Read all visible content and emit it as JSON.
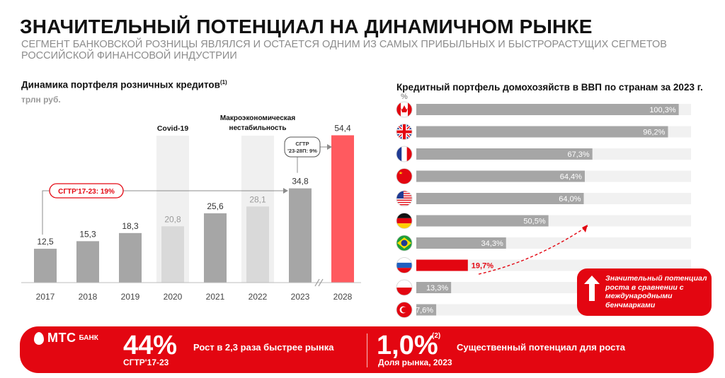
{
  "header": {
    "title": "ЗНАЧИТЕЛЬНЫЙ ПОТЕНЦИАЛ НА ДИНАМИЧНОМ РЫНКЕ",
    "subtitle": "СЕГМЕНТ БАНКОВСКОЙ РОЗНИЦЫ ЯВЛЯЛСЯ И ОСТАЕТСЯ ОДНИМ ИЗ САМЫХ ПРИБЫЛЬНЫХ И БЫСТРОРАСТУЩИХ СЕГМЕТОВ РОССИЙСКОЙ ФИНАНСОВОЙ ИНДУСТРИИ"
  },
  "colors": {
    "accent": "#e30611",
    "bar_dark": "#a6a6a6",
    "bar_light": "#d9d9d9",
    "bar_forecast": "#ff5a5f",
    "shade": "#f0f0f0",
    "row_bg": "#f1f1f1"
  },
  "chart_data": [
    {
      "type": "bar",
      "title": "Динамика портфеля розничных кредитов",
      "title_note": "(1)",
      "ylabel": "трлн руб.",
      "categories": [
        "2017",
        "2018",
        "2019",
        "2020",
        "2021",
        "2022",
        "2023",
        "2028"
      ],
      "values": [
        12.5,
        15.3,
        18.3,
        20.8,
        25.6,
        28.1,
        34.8,
        54.4
      ],
      "value_labels": [
        "12,5",
        "15,3",
        "18,3",
        "20,8",
        "25,6",
        "28,1",
        "34,8",
        "54,4"
      ],
      "bar_styles": [
        "dark",
        "dark",
        "dark",
        "light",
        "dark",
        "light",
        "dark",
        "forecast"
      ],
      "ylim": [
        0,
        60
      ],
      "shaded_periods": [
        {
          "category": "2020",
          "label": "Covid-19"
        },
        {
          "category": "2022",
          "label_line1": "Макроэкономическая",
          "label_line2": "нестабильность"
        }
      ],
      "annotations": [
        {
          "text": "СГТР'17-23: 19%",
          "from": "2017",
          "to": "2023"
        },
        {
          "text_line1": "СГТР",
          "text_line2": "'23-28П: 9%",
          "from": "2023",
          "to": "2028"
        }
      ],
      "axis_break_after": "2023"
    },
    {
      "type": "bar",
      "orientation": "horizontal",
      "title": "Кредитный портфель домохозяйств в ВВП по странам за 2023 г.",
      "unit": "%",
      "categories": [
        "canada-flag",
        "uk-flag",
        "france-flag",
        "china-flag",
        "usa-flag",
        "germany-flag",
        "brazil-flag",
        "russia-flag",
        "poland-flag",
        "turkey-flag"
      ],
      "values": [
        100.3,
        96.2,
        67.3,
        64.4,
        64.0,
        50.5,
        34.3,
        19.7,
        13.3,
        7.6
      ],
      "value_labels": [
        "100,3%",
        "96,2%",
        "67,3%",
        "64,4%",
        "64,0%",
        "50,5%",
        "34,3%",
        "19,7%",
        "13,3%",
        "7,6%"
      ],
      "highlight": "russia-flag",
      "xlim": [
        0,
        105
      ]
    }
  ],
  "callout": {
    "text": "Значительный потенциал роста в сравнении с международными бенчмарками"
  },
  "banner": {
    "logo_mts": "МТС",
    "logo_bank": "БАНК",
    "kpi1_value": "44%",
    "kpi1_label": "СГТР'17-23",
    "kpi1_desc": "Рост в 2,3 раза быстрее рынка",
    "kpi2_value": "1,0%",
    "kpi2_sup": "(2)",
    "kpi2_label": "Доля рынка, 2023",
    "kpi2_desc": "Существенный потенциал для роста"
  }
}
